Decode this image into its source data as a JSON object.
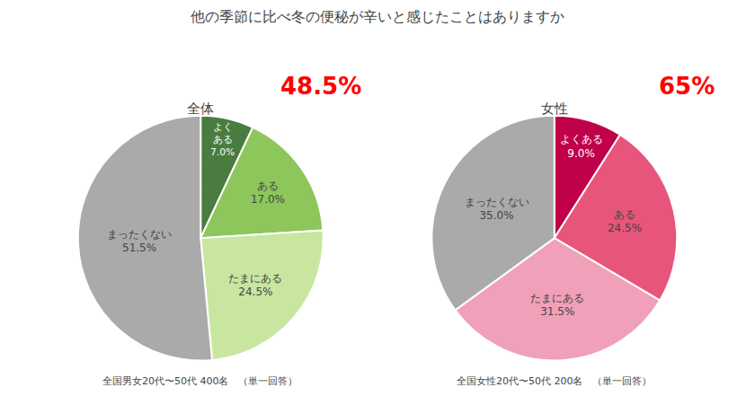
{
  "title": "他の季節に比べ冬の便秘が辛いと感じたことはありますか",
  "chart_data": [
    {
      "type": "pie",
      "subtitle": "全体",
      "labels": [
        "よく\nある",
        "ある",
        "たまにある",
        "まったくない"
      ],
      "values": [
        7.0,
        17.0,
        24.5,
        51.5
      ],
      "value_labels": [
        "7.0%",
        "17.0%",
        "24.5%",
        "51.5%"
      ],
      "data_labels": true,
      "colors": [
        "#4a7c3f",
        "#8dc65a",
        "#c8e6a0",
        "#aaaaaa"
      ],
      "annotations": [
        {
          "text": "48.5%",
          "color": "#ff0000"
        }
      ],
      "footnote": "全国男女20代〜50代 400名　（単一回答）"
    },
    {
      "type": "pie",
      "subtitle": "女性",
      "labels": [
        "よくある",
        "ある",
        "たまにある",
        "まったくない"
      ],
      "values": [
        9.0,
        24.5,
        31.5,
        35.0
      ],
      "value_labels": [
        "9.0%",
        "24.5%",
        "31.5%",
        "35.0%"
      ],
      "data_labels": true,
      "colors": [
        "#c0004a",
        "#e8557a",
        "#f0a0b8",
        "#aaaaaa"
      ],
      "annotations": [
        {
          "text": "65%",
          "color": "#ff0000"
        }
      ],
      "footnote": "全国女性20代〜50代 200名　（単一回答）"
    }
  ]
}
